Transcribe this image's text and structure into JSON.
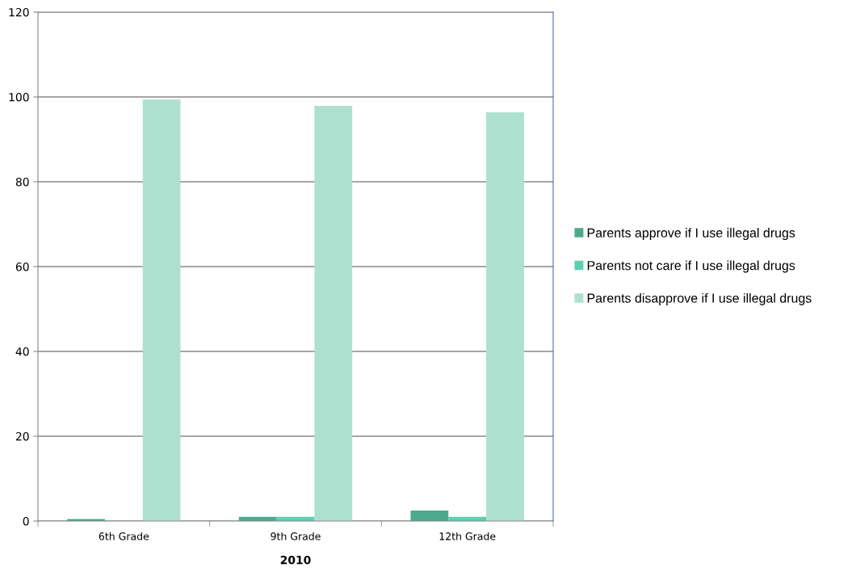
{
  "chart_data": {
    "type": "bar",
    "xlabel": "2010",
    "categories": [
      "6th Grade",
      "9th Grade",
      "12th Grade"
    ],
    "series": [
      {
        "name": "Parents approve if I use illegal drugs",
        "color": "#4ca98e",
        "values": [
          0.5,
          1,
          2.5
        ]
      },
      {
        "name": "Parents not care if I use illegal drugs",
        "color": "#5ccfae",
        "values": [
          0,
          1,
          1
        ]
      },
      {
        "name": "Parents disapprove if I use illegal drugs",
        "color": "#aee0d0",
        "values": [
          99.4,
          97.9,
          96.4
        ]
      }
    ],
    "ylim": [
      0,
      120
    ],
    "yticks": [
      0,
      20,
      40,
      60,
      80,
      100,
      120
    ],
    "grid": "y",
    "legend": "right"
  }
}
